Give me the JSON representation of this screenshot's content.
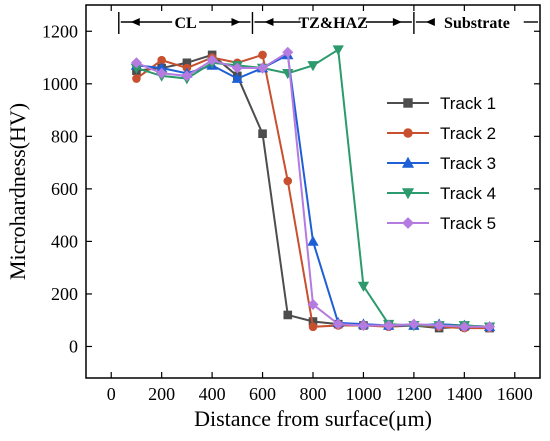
{
  "chart_data": {
    "type": "line",
    "xlabel": "Distance from surface(μm)",
    "ylabel": "Microhardness(HV)",
    "xlim": [
      -100,
      1700
    ],
    "ylim": [
      -120,
      1300
    ],
    "xticks": [
      0,
      200,
      400,
      600,
      800,
      1000,
      1200,
      1400,
      1600
    ],
    "yticks": [
      0,
      200,
      400,
      600,
      800,
      1000,
      1200
    ],
    "grid": false,
    "legend_position": "right",
    "regions": [
      {
        "label": "CL",
        "start": 30,
        "end": 560
      },
      {
        "label": "TZ&HAZ",
        "start": 560,
        "end": 1200
      },
      {
        "label": "Substrate",
        "start": 1200,
        "end": 1700
      }
    ],
    "series": [
      {
        "name": "Track 1",
        "color": "#4d4d4d",
        "marker": "square",
        "x": [
          100,
          200,
          300,
          400,
          500,
          600,
          700,
          800,
          900,
          1000,
          1100,
          1200,
          1300,
          1400,
          1500
        ],
        "y": [
          1050,
          1060,
          1080,
          1110,
          1030,
          810,
          120,
          95,
          85,
          80,
          80,
          80,
          70,
          75,
          70
        ]
      },
      {
        "name": "Track 2",
        "color": "#c8502f",
        "marker": "circle",
        "x": [
          100,
          200,
          300,
          400,
          500,
          600,
          700,
          800,
          900,
          1000,
          1100,
          1200,
          1300,
          1400,
          1500
        ],
        "y": [
          1020,
          1090,
          1060,
          1100,
          1080,
          1110,
          630,
          75,
          80,
          80,
          75,
          80,
          75,
          70,
          70
        ]
      },
      {
        "name": "Track 3",
        "color": "#1f5fd6",
        "marker": "triangle-up",
        "x": [
          100,
          200,
          300,
          400,
          500,
          600,
          700,
          800,
          900,
          1000,
          1100,
          1200,
          1300,
          1400,
          1500
        ],
        "y": [
          1070,
          1060,
          1040,
          1070,
          1020,
          1060,
          1110,
          400,
          90,
          85,
          80,
          80,
          85,
          80,
          75
        ]
      },
      {
        "name": "Track 4",
        "color": "#2c9a6c",
        "marker": "triangle-down",
        "x": [
          100,
          200,
          300,
          400,
          500,
          600,
          700,
          800,
          900,
          1000,
          1100,
          1200,
          1300,
          1400,
          1500
        ],
        "y": [
          1060,
          1030,
          1020,
          1080,
          1070,
          1060,
          1040,
          1070,
          1130,
          230,
          85,
          80,
          80,
          80,
          75
        ]
      },
      {
        "name": "Track 5",
        "color": "#b57be0",
        "marker": "diamond",
        "x": [
          100,
          200,
          300,
          400,
          500,
          600,
          700,
          800,
          900,
          1000,
          1100,
          1200,
          1300,
          1400,
          1500
        ],
        "y": [
          1080,
          1040,
          1030,
          1090,
          1060,
          1060,
          1120,
          160,
          85,
          80,
          80,
          85,
          80,
          75,
          75
        ]
      }
    ]
  }
}
